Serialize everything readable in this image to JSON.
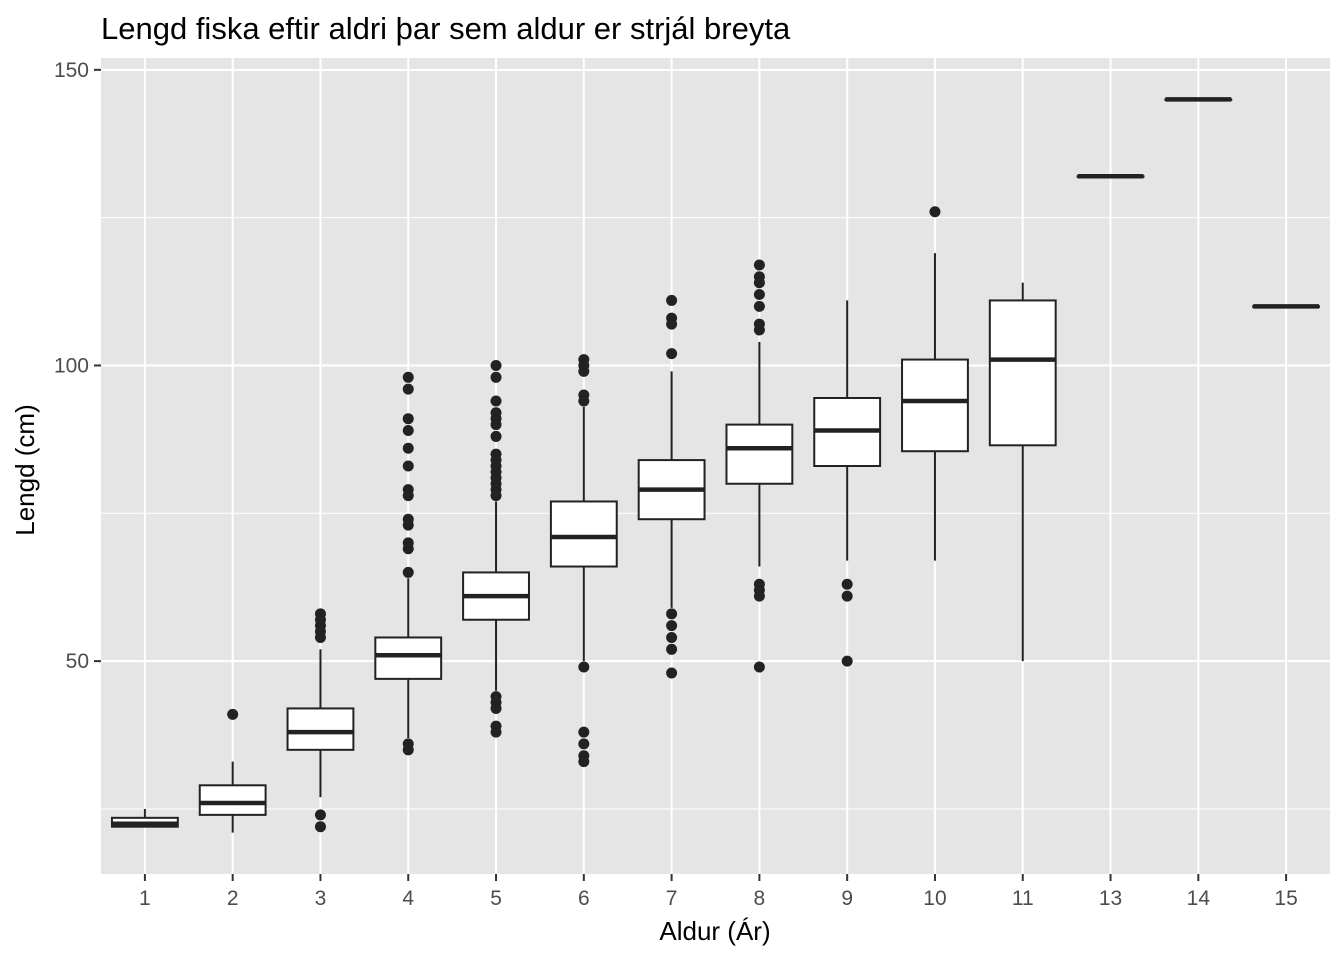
{
  "chart_data": {
    "type": "boxplot",
    "title": "Lengd fiska eftir aldri þar sem aldur er strjál breyta",
    "xlabel": "Aldur (Ár)",
    "ylabel": "Lengd (cm)",
    "categories": [
      "1",
      "2",
      "3",
      "4",
      "5",
      "6",
      "7",
      "8",
      "9",
      "10",
      "11",
      "13",
      "14",
      "15"
    ],
    "ylim": [
      14,
      152
    ],
    "yticks": [
      50,
      100,
      150
    ],
    "grid": true,
    "legend": "none",
    "boxes": [
      {
        "x": "1",
        "lower_whisker": 22,
        "q1": 22,
        "median": 22.5,
        "q3": 23.5,
        "upper_whisker": 25,
        "outliers": []
      },
      {
        "x": "2",
        "lower_whisker": 21,
        "q1": 24,
        "median": 26,
        "q3": 29,
        "upper_whisker": 33,
        "outliers": [
          41
        ]
      },
      {
        "x": "3",
        "lower_whisker": 27,
        "q1": 35,
        "median": 38,
        "q3": 42,
        "upper_whisker": 52,
        "outliers": [
          24,
          22,
          54,
          55,
          56,
          57,
          58
        ]
      },
      {
        "x": "4",
        "lower_whisker": 37,
        "q1": 47,
        "median": 51,
        "q3": 54,
        "upper_whisker": 64,
        "outliers": [
          35,
          36,
          65,
          69,
          70,
          73,
          74,
          78,
          79,
          83,
          86,
          89,
          91,
          96,
          98
        ]
      },
      {
        "x": "5",
        "lower_whisker": 45,
        "q1": 57,
        "median": 61,
        "q3": 65,
        "upper_whisker": 77,
        "outliers": [
          38,
          39,
          42,
          43,
          44,
          78,
          79,
          80,
          81,
          82,
          83,
          84,
          85,
          88,
          90,
          91,
          92,
          94,
          98,
          100
        ]
      },
      {
        "x": "6",
        "lower_whisker": 50,
        "q1": 66,
        "median": 71,
        "q3": 77,
        "upper_whisker": 93,
        "outliers": [
          33,
          34,
          36,
          38,
          49,
          94,
          95,
          99,
          100,
          101
        ]
      },
      {
        "x": "7",
        "lower_whisker": 59,
        "q1": 74,
        "median": 79,
        "q3": 84,
        "upper_whisker": 99,
        "outliers": [
          48,
          52,
          54,
          56,
          58,
          102,
          107,
          108,
          111
        ]
      },
      {
        "x": "8",
        "lower_whisker": 66,
        "q1": 80,
        "median": 86,
        "q3": 90,
        "upper_whisker": 104,
        "outliers": [
          49,
          61,
          62,
          63,
          106,
          107,
          110,
          112,
          114,
          115,
          117
        ]
      },
      {
        "x": "9",
        "lower_whisker": 67,
        "q1": 83,
        "median": 89,
        "q3": 94.5,
        "upper_whisker": 111,
        "outliers": [
          50,
          61,
          63
        ]
      },
      {
        "x": "10",
        "lower_whisker": 67,
        "q1": 85.5,
        "median": 94,
        "q3": 101,
        "upper_whisker": 119,
        "outliers": [
          126
        ]
      },
      {
        "x": "11",
        "lower_whisker": 50,
        "q1": 86.5,
        "median": 101,
        "q3": 111,
        "upper_whisker": 114,
        "outliers": []
      },
      {
        "x": "13",
        "lower_whisker": 132,
        "q1": 132,
        "median": 132,
        "q3": 132,
        "upper_whisker": 132,
        "outliers": []
      },
      {
        "x": "14",
        "lower_whisker": 145,
        "q1": 145,
        "median": 145,
        "q3": 145,
        "upper_whisker": 145,
        "outliers": []
      },
      {
        "x": "15",
        "lower_whisker": 110,
        "q1": 110,
        "median": 110,
        "q3": 110,
        "upper_whisker": 110,
        "outliers": []
      }
    ],
    "colors": {
      "panel_background": "#e5e5e5",
      "grid": "#ffffff",
      "box_fill": "#ffffff",
      "box_stroke": "#222222",
      "outlier": "#222222"
    }
  }
}
